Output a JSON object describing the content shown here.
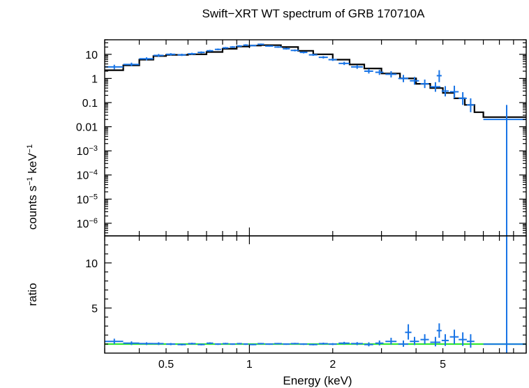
{
  "chart_data": {
    "type": "scatter",
    "title": "Swift−XRT WT spectrum of GRB 170710A",
    "xlabel": "Energy (keV)",
    "xscale": "log",
    "xlim": [
      0.3,
      10
    ],
    "x_ticks": [
      {
        "value": 0.5,
        "label": "0.5"
      },
      {
        "value": 1,
        "label": "1"
      },
      {
        "value": 2,
        "label": "2"
      },
      {
        "value": 5,
        "label": "5"
      }
    ],
    "colors": {
      "data": "#1874e6",
      "model": "#000000",
      "ratio_line": "#2ee62e",
      "axes": "#000000"
    },
    "panels": [
      {
        "name": "spectrum",
        "ylabel_parts": {
          "base": "counts s",
          "exp1": "−1",
          "mid": " keV",
          "exp2": "−1"
        },
        "yscale": "log",
        "ylim": [
          3e-07,
          40
        ],
        "y_ticks": [
          {
            "value": 10,
            "base": "10",
            "exp": ""
          },
          {
            "value": 1,
            "base": "1",
            "exp": ""
          },
          {
            "value": 0.1,
            "base": "0.1",
            "exp": ""
          },
          {
            "value": 0.01,
            "base": "0.01",
            "exp": ""
          },
          {
            "value": 0.001,
            "base": "10",
            "exp": "−3"
          },
          {
            "value": 0.0001,
            "base": "10",
            "exp": "−4"
          },
          {
            "value": 1e-05,
            "base": "10",
            "exp": "−5"
          },
          {
            "value": 1e-06,
            "base": "10",
            "exp": "−6"
          }
        ],
        "series": [
          {
            "kind": "model_step",
            "edges": [
              0.3,
              0.35,
              0.4,
              0.45,
              0.5,
              0.6,
              0.7,
              0.8,
              0.9,
              1.0,
              1.1,
              1.3,
              1.5,
              1.7,
              2.0,
              2.3,
              2.6,
              3.0,
              3.5,
              4.0,
              4.5,
              5.0,
              5.5,
              6.0,
              6.5,
              7.0,
              10.0
            ],
            "values": [
              2.2,
              3.5,
              6.0,
              8.5,
              9.5,
              10.0,
              12.5,
              17.0,
              21.0,
              23.0,
              24.0,
              20.0,
              14.0,
              10.0,
              6.0,
              3.8,
              2.6,
              1.6,
              1.0,
              0.6,
              0.4,
              0.25,
              0.15,
              0.08,
              0.04,
              0.025
            ]
          },
          {
            "kind": "data",
            "points": [
              {
                "x": 0.325,
                "xlo": 0.3,
                "xhi": 0.35,
                "y": 3.0,
                "ylo": 2.4,
                "yhi": 3.7
              },
              {
                "x": 0.375,
                "xlo": 0.35,
                "xhi": 0.4,
                "y": 3.8,
                "ylo": 3.2,
                "yhi": 4.5
              },
              {
                "x": 0.425,
                "xlo": 0.4,
                "xhi": 0.45,
                "y": 6.5,
                "ylo": 5.6,
                "yhi": 7.5
              },
              {
                "x": 0.47,
                "xlo": 0.45,
                "xhi": 0.49,
                "y": 9.0,
                "ylo": 7.8,
                "yhi": 10.3
              },
              {
                "x": 0.52,
                "xlo": 0.5,
                "xhi": 0.54,
                "y": 10.0,
                "ylo": 8.9,
                "yhi": 11.2
              },
              {
                "x": 0.57,
                "xlo": 0.55,
                "xhi": 0.59,
                "y": 9.5,
                "ylo": 8.5,
                "yhi": 10.6
              },
              {
                "x": 0.62,
                "xlo": 0.6,
                "xhi": 0.64,
                "y": 10.5,
                "ylo": 9.5,
                "yhi": 11.6
              },
              {
                "x": 0.67,
                "xlo": 0.65,
                "xhi": 0.69,
                "y": 12.0,
                "ylo": 10.9,
                "yhi": 13.2
              },
              {
                "x": 0.72,
                "xlo": 0.7,
                "xhi": 0.74,
                "y": 14.0,
                "ylo": 12.8,
                "yhi": 15.3
              },
              {
                "x": 0.77,
                "xlo": 0.75,
                "xhi": 0.79,
                "y": 16.0,
                "ylo": 14.7,
                "yhi": 17.4
              },
              {
                "x": 0.82,
                "xlo": 0.8,
                "xhi": 0.84,
                "y": 18.5,
                "ylo": 17.0,
                "yhi": 20.1
              },
              {
                "x": 0.87,
                "xlo": 0.85,
                "xhi": 0.89,
                "y": 20.0,
                "ylo": 18.4,
                "yhi": 21.7
              },
              {
                "x": 0.92,
                "xlo": 0.9,
                "xhi": 0.94,
                "y": 22.0,
                "ylo": 20.3,
                "yhi": 23.8
              },
              {
                "x": 0.97,
                "xlo": 0.95,
                "xhi": 0.99,
                "y": 24.0,
                "ylo": 22.2,
                "yhi": 26.0
              },
              {
                "x": 1.03,
                "xlo": 1.0,
                "xhi": 1.06,
                "y": 23.0,
                "ylo": 21.3,
                "yhi": 24.9
              },
              {
                "x": 1.1,
                "xlo": 1.07,
                "xhi": 1.13,
                "y": 26.0,
                "ylo": 24.1,
                "yhi": 28.0
              },
              {
                "x": 1.18,
                "xlo": 1.14,
                "xhi": 1.22,
                "y": 22.0,
                "ylo": 20.4,
                "yhi": 23.7
              },
              {
                "x": 1.27,
                "xlo": 1.23,
                "xhi": 1.31,
                "y": 20.0,
                "ylo": 18.5,
                "yhi": 21.6
              },
              {
                "x": 1.36,
                "xlo": 1.32,
                "xhi": 1.4,
                "y": 17.0,
                "ylo": 15.6,
                "yhi": 18.5
              },
              {
                "x": 1.46,
                "xlo": 1.41,
                "xhi": 1.51,
                "y": 14.5,
                "ylo": 13.2,
                "yhi": 15.9
              },
              {
                "x": 1.57,
                "xlo": 1.52,
                "xhi": 1.62,
                "y": 12.0,
                "ylo": 10.9,
                "yhi": 13.2
              },
              {
                "x": 1.7,
                "xlo": 1.64,
                "xhi": 1.76,
                "y": 9.5,
                "ylo": 8.6,
                "yhi": 10.5
              },
              {
                "x": 1.85,
                "xlo": 1.78,
                "xhi": 1.92,
                "y": 7.5,
                "ylo": 6.7,
                "yhi": 8.4
              },
              {
                "x": 2.0,
                "xlo": 1.93,
                "xhi": 2.07,
                "y": 6.0,
                "ylo": 5.3,
                "yhi": 6.8
              },
              {
                "x": 2.2,
                "xlo": 2.1,
                "xhi": 2.3,
                "y": 4.2,
                "ylo": 3.6,
                "yhi": 4.9
              },
              {
                "x": 2.45,
                "xlo": 2.33,
                "xhi": 2.57,
                "y": 3.0,
                "ylo": 2.5,
                "yhi": 3.6
              },
              {
                "x": 2.7,
                "xlo": 2.6,
                "xhi": 2.8,
                "y": 2.0,
                "ylo": 1.6,
                "yhi": 2.5
              },
              {
                "x": 2.95,
                "xlo": 2.85,
                "xhi": 3.05,
                "y": 1.8,
                "ylo": 1.4,
                "yhi": 2.3
              },
              {
                "x": 3.25,
                "xlo": 3.1,
                "xhi": 3.4,
                "y": 1.5,
                "ylo": 1.1,
                "yhi": 2.0
              },
              {
                "x": 3.6,
                "xlo": 3.45,
                "xhi": 3.75,
                "y": 1.0,
                "ylo": 0.7,
                "yhi": 1.4
              },
              {
                "x": 3.95,
                "xlo": 3.8,
                "xhi": 4.1,
                "y": 0.8,
                "ylo": 0.55,
                "yhi": 1.15
              },
              {
                "x": 4.3,
                "xlo": 4.15,
                "xhi": 4.45,
                "y": 0.6,
                "ylo": 0.4,
                "yhi": 0.9
              },
              {
                "x": 4.7,
                "xlo": 4.5,
                "xhi": 4.9,
                "y": 0.45,
                "ylo": 0.28,
                "yhi": 0.7
              },
              {
                "x": 4.85,
                "xlo": 4.75,
                "xhi": 4.95,
                "y": 1.3,
                "ylo": 0.7,
                "yhi": 2.2
              },
              {
                "x": 5.1,
                "xlo": 4.95,
                "xhi": 5.25,
                "y": 0.3,
                "ylo": 0.18,
                "yhi": 0.48
              },
              {
                "x": 5.5,
                "xlo": 5.3,
                "xhi": 5.7,
                "y": 0.28,
                "ylo": 0.15,
                "yhi": 0.5
              },
              {
                "x": 5.9,
                "xlo": 5.7,
                "xhi": 6.1,
                "y": 0.15,
                "ylo": 0.08,
                "yhi": 0.27
              },
              {
                "x": 6.3,
                "xlo": 6.1,
                "xhi": 6.5,
                "y": 0.08,
                "ylo": 0.04,
                "yhi": 0.15
              },
              {
                "x": 8.5,
                "xlo": 7.0,
                "xhi": 10.0,
                "y": 0.02,
                "ylo": 3e-07,
                "yhi": 0.08
              }
            ]
          }
        ]
      },
      {
        "name": "ratio",
        "ylabel": "ratio",
        "yscale": "linear",
        "ylim": [
          0,
          13
        ],
        "y_ticks": [
          {
            "value": 5,
            "label": "5"
          },
          {
            "value": 10,
            "label": "10"
          }
        ],
        "reference_line": 1,
        "points": [
          {
            "x": 0.325,
            "xlo": 0.3,
            "xhi": 0.35,
            "y": 1.3,
            "ylo": 1.0,
            "yhi": 1.6
          },
          {
            "x": 0.375,
            "xlo": 0.35,
            "xhi": 0.4,
            "y": 1.1,
            "ylo": 0.9,
            "yhi": 1.3
          },
          {
            "x": 0.425,
            "xlo": 0.4,
            "xhi": 0.45,
            "y": 1.05,
            "ylo": 0.9,
            "yhi": 1.2
          },
          {
            "x": 0.47,
            "xlo": 0.45,
            "xhi": 0.49,
            "y": 1.05,
            "ylo": 0.9,
            "yhi": 1.2
          },
          {
            "x": 0.52,
            "xlo": 0.5,
            "xhi": 0.54,
            "y": 1.0,
            "ylo": 0.88,
            "yhi": 1.12
          },
          {
            "x": 0.57,
            "xlo": 0.55,
            "xhi": 0.59,
            "y": 0.95,
            "ylo": 0.85,
            "yhi": 1.05
          },
          {
            "x": 0.62,
            "xlo": 0.6,
            "xhi": 0.64,
            "y": 1.05,
            "ylo": 0.95,
            "yhi": 1.15
          },
          {
            "x": 0.67,
            "xlo": 0.65,
            "xhi": 0.69,
            "y": 0.95,
            "ylo": 0.86,
            "yhi": 1.04
          },
          {
            "x": 0.72,
            "xlo": 0.7,
            "xhi": 0.74,
            "y": 1.1,
            "ylo": 1.0,
            "yhi": 1.2
          },
          {
            "x": 0.77,
            "xlo": 0.75,
            "xhi": 0.79,
            "y": 1.0,
            "ylo": 0.91,
            "yhi": 1.09
          },
          {
            "x": 0.82,
            "xlo": 0.8,
            "xhi": 0.84,
            "y": 1.05,
            "ylo": 0.96,
            "yhi": 1.14
          },
          {
            "x": 0.87,
            "xlo": 0.85,
            "xhi": 0.89,
            "y": 1.0,
            "ylo": 0.92,
            "yhi": 1.08
          },
          {
            "x": 0.92,
            "xlo": 0.9,
            "xhi": 0.94,
            "y": 1.05,
            "ylo": 0.97,
            "yhi": 1.13
          },
          {
            "x": 0.97,
            "xlo": 0.95,
            "xhi": 0.99,
            "y": 1.0,
            "ylo": 0.92,
            "yhi": 1.08
          },
          {
            "x": 1.03,
            "xlo": 1.0,
            "xhi": 1.06,
            "y": 0.95,
            "ylo": 0.88,
            "yhi": 1.02
          },
          {
            "x": 1.1,
            "xlo": 1.07,
            "xhi": 1.13,
            "y": 1.05,
            "ylo": 0.97,
            "yhi": 1.13
          },
          {
            "x": 1.18,
            "xlo": 1.14,
            "xhi": 1.22,
            "y": 1.0,
            "ylo": 0.92,
            "yhi": 1.08
          },
          {
            "x": 1.27,
            "xlo": 1.23,
            "xhi": 1.31,
            "y": 1.05,
            "ylo": 0.97,
            "yhi": 1.13
          },
          {
            "x": 1.36,
            "xlo": 1.32,
            "xhi": 1.4,
            "y": 1.0,
            "ylo": 0.92,
            "yhi": 1.08
          },
          {
            "x": 1.46,
            "xlo": 1.41,
            "xhi": 1.51,
            "y": 1.05,
            "ylo": 0.96,
            "yhi": 1.14
          },
          {
            "x": 1.57,
            "xlo": 1.52,
            "xhi": 1.62,
            "y": 1.0,
            "ylo": 0.91,
            "yhi": 1.09
          },
          {
            "x": 1.7,
            "xlo": 1.64,
            "xhi": 1.76,
            "y": 0.95,
            "ylo": 0.86,
            "yhi": 1.04
          },
          {
            "x": 1.85,
            "xlo": 1.78,
            "xhi": 1.92,
            "y": 1.05,
            "ylo": 0.94,
            "yhi": 1.16
          },
          {
            "x": 2.0,
            "xlo": 1.93,
            "xhi": 2.07,
            "y": 1.0,
            "ylo": 0.89,
            "yhi": 1.11
          },
          {
            "x": 2.2,
            "xlo": 2.1,
            "xhi": 2.3,
            "y": 1.1,
            "ylo": 0.95,
            "yhi": 1.25
          },
          {
            "x": 2.45,
            "xlo": 2.33,
            "xhi": 2.57,
            "y": 1.05,
            "ylo": 0.88,
            "yhi": 1.22
          },
          {
            "x": 2.7,
            "xlo": 2.6,
            "xhi": 2.8,
            "y": 0.95,
            "ylo": 0.75,
            "yhi": 1.2
          },
          {
            "x": 2.95,
            "xlo": 2.85,
            "xhi": 3.05,
            "y": 1.1,
            "ylo": 0.85,
            "yhi": 1.4
          },
          {
            "x": 3.25,
            "xlo": 3.1,
            "xhi": 3.4,
            "y": 1.3,
            "ylo": 0.95,
            "yhi": 1.7
          },
          {
            "x": 3.6,
            "xlo": 3.45,
            "xhi": 3.75,
            "y": 1.0,
            "ylo": 0.7,
            "yhi": 1.4
          },
          {
            "x": 3.75,
            "xlo": 3.65,
            "xhi": 3.85,
            "y": 2.3,
            "ylo": 1.5,
            "yhi": 3.2
          },
          {
            "x": 3.95,
            "xlo": 3.8,
            "xhi": 4.1,
            "y": 1.3,
            "ylo": 0.9,
            "yhi": 1.8
          },
          {
            "x": 4.3,
            "xlo": 4.15,
            "xhi": 4.45,
            "y": 1.5,
            "ylo": 1.0,
            "yhi": 2.1
          },
          {
            "x": 4.7,
            "xlo": 4.5,
            "xhi": 4.9,
            "y": 1.2,
            "ylo": 0.75,
            "yhi": 1.8
          },
          {
            "x": 4.85,
            "xlo": 4.75,
            "xhi": 4.95,
            "y": 2.5,
            "ylo": 1.7,
            "yhi": 3.3
          },
          {
            "x": 5.1,
            "xlo": 4.95,
            "xhi": 5.25,
            "y": 1.4,
            "ylo": 0.8,
            "yhi": 2.1
          },
          {
            "x": 5.5,
            "xlo": 5.3,
            "xhi": 5.7,
            "y": 1.8,
            "ylo": 1.0,
            "yhi": 2.6
          },
          {
            "x": 5.9,
            "xlo": 5.7,
            "xhi": 6.1,
            "y": 1.5,
            "ylo": 0.8,
            "yhi": 2.3
          },
          {
            "x": 6.3,
            "xlo": 6.1,
            "xhi": 6.5,
            "y": 1.3,
            "ylo": 0.6,
            "yhi": 2.1
          },
          {
            "x": 8.5,
            "xlo": 7.0,
            "xhi": 10.0,
            "y": 1.0,
            "ylo": 0.0,
            "yhi": 13.0
          }
        ]
      }
    ]
  }
}
